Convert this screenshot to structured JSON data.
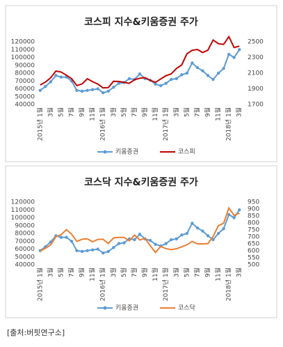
{
  "chart_data": [
    {
      "type": "line",
      "title": "코스피 지수&키움증권 주가",
      "categories": [
        "2015년 1월",
        null,
        "3월",
        null,
        "5월",
        null,
        "7월",
        null,
        "9월",
        null,
        "11월",
        null,
        "2016년 1월",
        null,
        "3월",
        null,
        "5월",
        null,
        "7월",
        null,
        "9월",
        null,
        "11월",
        null,
        "2017년 1월",
        null,
        "3월",
        null,
        "5월",
        null,
        "7월",
        null,
        "9월",
        null,
        "11월",
        null,
        "2018년 1월",
        null,
        "3월"
      ],
      "series": [
        {
          "name": "키움증권",
          "color": "#5b9bd5",
          "marker": "circle",
          "values": [
            58000,
            63000,
            69000,
            77000,
            75000,
            75000,
            70000,
            58000,
            57000,
            58000,
            59000,
            60000,
            55000,
            57000,
            62000,
            67000,
            68000,
            73000,
            72000,
            79000,
            73000,
            71000,
            66000,
            64000,
            67000,
            72000,
            73000,
            78000,
            80000,
            93000,
            87000,
            83000,
            77000,
            72000,
            80000,
            86000,
            104000,
            100000,
            110000
          ]
        },
        {
          "name": "코스피",
          "color": "#c00000",
          "axis": "y2",
          "values": [
            1949,
            1986,
            2041,
            2127,
            2114,
            2074,
            2030,
            1941,
            1963,
            2029,
            1991,
            1961,
            1912,
            1916,
            1996,
            1994,
            1983,
            1970,
            2016,
            2035,
            2043,
            2008,
            1983,
            2026,
            2067,
            2091,
            2160,
            2205,
            2347,
            2392,
            2402,
            2363,
            2394,
            2523,
            2476,
            2467,
            2566,
            2427,
            2445
          ]
        }
      ],
      "ylim": [
        40000,
        120000
      ],
      "yticks": [
        40000,
        50000,
        60000,
        70000,
        80000,
        90000,
        100000,
        110000,
        120000
      ],
      "y2lim": [
        1700,
        2500
      ],
      "y2ticks": [
        1700,
        1900,
        2100,
        2300,
        2500
      ]
    },
    {
      "type": "line",
      "title": "코스닥 지수&키움증권 주가",
      "categories": [
        "2015년 1월",
        null,
        "3월",
        null,
        "5월",
        null,
        "7월",
        null,
        "9월",
        null,
        "11월",
        null,
        "2016년 1월",
        null,
        "3월",
        null,
        "5월",
        null,
        "7월",
        null,
        "9월",
        null,
        "11월",
        null,
        "2017년 1월",
        null,
        "3월",
        null,
        "5월",
        null,
        "7월",
        null,
        "9월",
        null,
        "11월",
        null,
        "2018년 1월",
        null,
        "3월"
      ],
      "series": [
        {
          "name": "키움증권",
          "color": "#5b9bd5",
          "marker": "circle",
          "values": [
            58000,
            63000,
            69000,
            77000,
            75000,
            75000,
            70000,
            58000,
            57000,
            58000,
            59000,
            60000,
            55000,
            57000,
            62000,
            67000,
            68000,
            73000,
            72000,
            79000,
            73000,
            71000,
            66000,
            64000,
            67000,
            72000,
            73000,
            78000,
            80000,
            93000,
            87000,
            83000,
            77000,
            72000,
            80000,
            86000,
            104000,
            100000,
            110000
          ]
        },
        {
          "name": "코스닥",
          "color": "#ed7d31",
          "axis": "y2",
          "values": [
            599,
            618,
            643,
            702,
            716,
            752,
            720,
            668,
            683,
            686,
            665,
            682,
            683,
            652,
            693,
            696,
            696,
            672,
            713,
            678,
            689,
            637,
            588,
            632,
            616,
            609,
            615,
            629,
            643,
            668,
            650,
            650,
            652,
            703,
            781,
            798,
            908,
            854,
            871
          ]
        }
      ],
      "ylim": [
        40000,
        120000
      ],
      "yticks": [
        40000,
        50000,
        60000,
        70000,
        80000,
        90000,
        100000,
        110000,
        120000
      ],
      "y2lim": [
        500,
        950
      ],
      "y2ticks": [
        500,
        550,
        600,
        650,
        700,
        750,
        800,
        850,
        900,
        950
      ]
    }
  ],
  "source": "[출처:버핏연구소]"
}
